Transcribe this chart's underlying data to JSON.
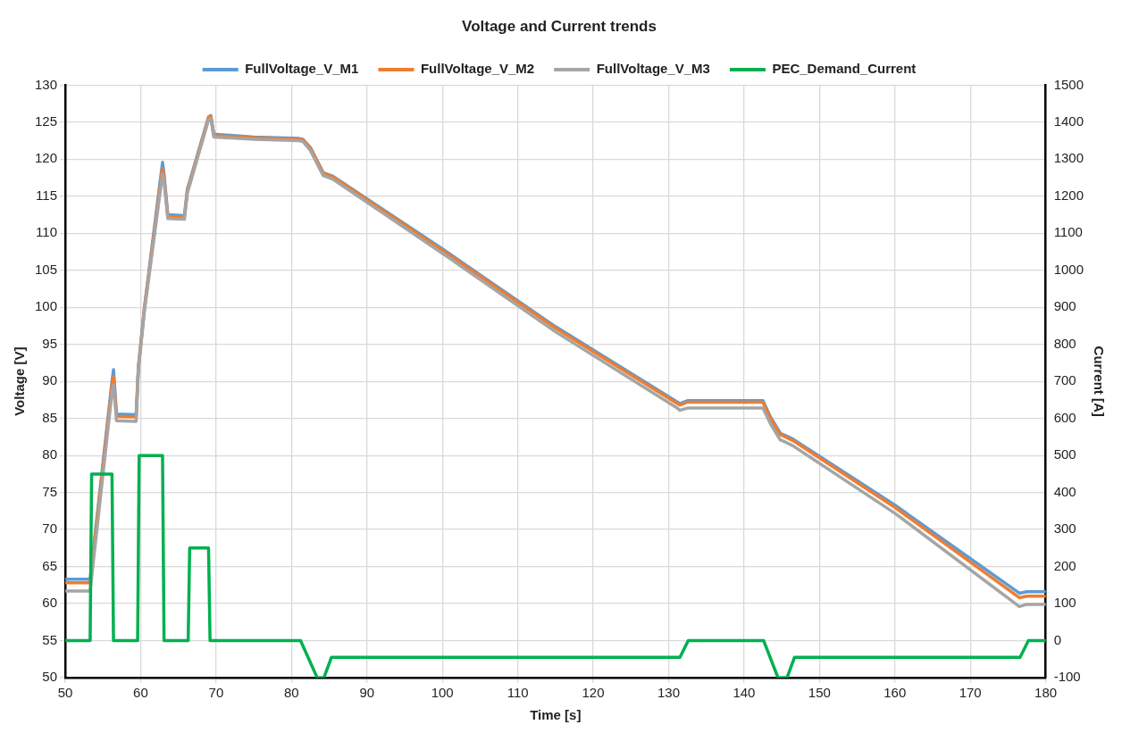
{
  "chart_data": {
    "type": "line",
    "title": "Voltage and Current trends",
    "xlabel": "Time [s]",
    "ylabel": "Voltage [V]",
    "y2label": "Current [A]",
    "xlim": [
      50,
      180
    ],
    "xticks": [
      50,
      60,
      70,
      80,
      90,
      100,
      110,
      120,
      130,
      140,
      150,
      160,
      170,
      180
    ],
    "ylim": [
      50,
      130
    ],
    "yticks": [
      50,
      55,
      60,
      65,
      70,
      75,
      80,
      85,
      90,
      95,
      100,
      105,
      110,
      115,
      120,
      125,
      130
    ],
    "y2lim": [
      -100,
      1500
    ],
    "y2ticks": [
      -100,
      0,
      100,
      200,
      300,
      400,
      500,
      600,
      700,
      800,
      900,
      1000,
      1100,
      1200,
      1300,
      1400,
      1500
    ],
    "grid": true,
    "legend": "top",
    "x": [
      50,
      53.3,
      56.2,
      56.4,
      56.8,
      59.4,
      59.7,
      60.5,
      62.9,
      63.1,
      63.6,
      65.8,
      66.2,
      66.5,
      69,
      69.3,
      69.7,
      75,
      81,
      81.5,
      82.5,
      84.2,
      85,
      85.5,
      100,
      115,
      131,
      131.5,
      132.5,
      142.5,
      143.5,
      144.8,
      145.5,
      146.5,
      160,
      176.5,
      177.5,
      180
    ],
    "series": [
      {
        "name": "FullVoltage_V_M1",
        "color": "#5b9bd5",
        "values": [
          63.3,
          63.3,
          90,
          91.6,
          85.6,
          85.5,
          92,
          100,
          119.6,
          118,
          112.5,
          112.4,
          116,
          117,
          125.7,
          125.9,
          123.4,
          123,
          122.8,
          122.7,
          121.6,
          118.2,
          117.9,
          117.7,
          107.9,
          97.4,
          87.3,
          87.0,
          87.4,
          87.4,
          85.2,
          83,
          82.7,
          82.2,
          73.3,
          61.4,
          61.6,
          61.6
        ]
      },
      {
        "name": "FullVoltage_V_M2",
        "color": "#ed7d31",
        "values": [
          62.8,
          62.8,
          89.5,
          90.6,
          85.3,
          85.2,
          91.8,
          99.8,
          118.8,
          117.5,
          112.3,
          112.2,
          115.8,
          116.8,
          125.6,
          125.8,
          123.2,
          122.9,
          122.7,
          122.6,
          121.5,
          118.1,
          117.8,
          117.6,
          107.7,
          97.2,
          87.1,
          86.8,
          87.2,
          87.2,
          85.0,
          82.8,
          82.5,
          82.0,
          73.0,
          60.8,
          61.0,
          61.0
        ]
      },
      {
        "name": "FullVoltage_V_M3",
        "color": "#a5a5a5",
        "values": [
          61.7,
          61.7,
          88.5,
          89.5,
          84.7,
          84.6,
          91.5,
          99.5,
          118,
          117,
          112,
          111.9,
          115.5,
          116.5,
          125.3,
          125.5,
          123,
          122.7,
          122.5,
          122.4,
          121.2,
          117.8,
          117.5,
          117.3,
          107.3,
          96.7,
          86.5,
          86.1,
          86.4,
          86.4,
          84.3,
          82.1,
          81.8,
          81.3,
          72.2,
          59.6,
          59.9,
          59.9
        ]
      },
      {
        "name": "PEC_Demand_Current",
        "color": "#00b050",
        "axis": "y2",
        "x": [
          50,
          53.3,
          53.5,
          56.2,
          56.4,
          59.6,
          59.8,
          62.9,
          63.1,
          66.3,
          66.5,
          69,
          69.2,
          81.2,
          83.4,
          84.3,
          85.3,
          131.5,
          132.6,
          142.6,
          144.5,
          145.7,
          146.7,
          176.6,
          177.7,
          180
        ],
        "values": [
          0,
          0,
          450,
          450,
          0,
          0,
          500,
          500,
          0,
          0,
          250,
          250,
          0,
          0,
          -100,
          -100,
          -45,
          -45,
          0,
          0,
          -100,
          -100,
          -45,
          -45,
          0,
          0
        ]
      }
    ]
  }
}
